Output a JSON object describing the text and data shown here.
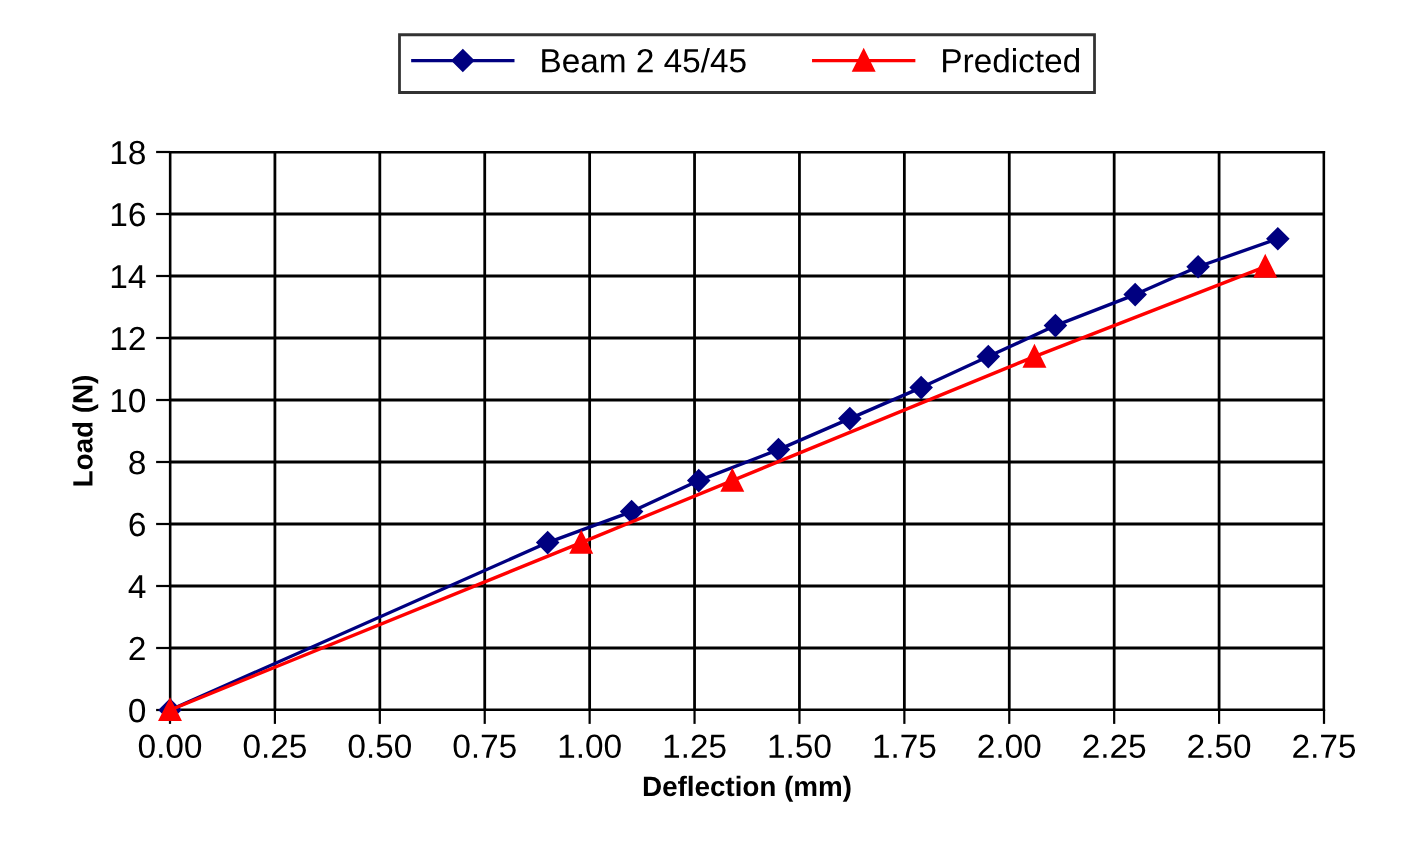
{
  "chart_data": {
    "type": "line",
    "xlabel": "Deflection (mm)",
    "ylabel": "Load (N)",
    "xlim": [
      0,
      2.75
    ],
    "xticks": [
      {
        "value": 0,
        "label": "0.00"
      },
      {
        "value": 0.25,
        "label": "0.25"
      },
      {
        "value": 0.5,
        "label": "0.50"
      },
      {
        "value": 0.75,
        "label": "0.75"
      },
      {
        "value": 1,
        "label": "1.00"
      },
      {
        "value": 1.25,
        "label": "1.25"
      },
      {
        "value": 1.5,
        "label": "1.50"
      },
      {
        "value": 1.75,
        "label": "1.75"
      },
      {
        "value": 2,
        "label": "2.00"
      },
      {
        "value": 2.25,
        "label": "2.25"
      },
      {
        "value": 2.5,
        "label": "2.50"
      },
      {
        "value": 2.75,
        "label": "2.75"
      }
    ],
    "ylim": [
      0,
      18
    ],
    "yticks": [
      0,
      2,
      4,
      6,
      8,
      10,
      12,
      14,
      16,
      18
    ],
    "grid": true,
    "legend": "top",
    "series": [
      {
        "name": "Beam 2 45/45",
        "color": "#000080",
        "marker": "diamond",
        "x": [
          0,
          0.9,
          1.1,
          1.26,
          1.45,
          1.62,
          1.79,
          1.95,
          2.11,
          2.3,
          2.45,
          2.64
        ],
        "values": [
          0,
          5.4,
          6.4,
          7.4,
          8.4,
          9.4,
          10.4,
          11.4,
          12.4,
          13.4,
          14.3,
          15.2
        ]
      },
      {
        "name": "Predicted",
        "color": "#ff0000",
        "marker": "triangle",
        "x": [
          0,
          0.98,
          1.34,
          2.06,
          2.61
        ],
        "values": [
          0,
          5.4,
          7.4,
          11.4,
          14.3
        ]
      }
    ]
  }
}
